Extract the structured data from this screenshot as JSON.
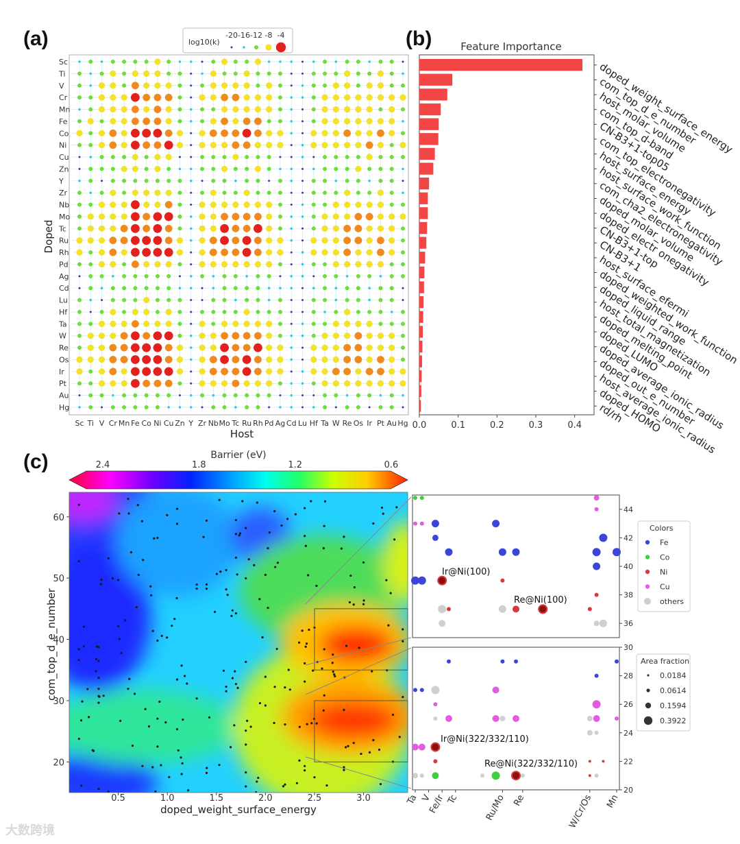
{
  "chart_data": [
    {
      "panel": "(a)",
      "type": "scatter",
      "xlabel": "Host",
      "ylabel": "Doped",
      "hosts": [
        "Sc",
        "Ti",
        "V",
        "Cr",
        "Mn",
        "Fe",
        "Co",
        "Ni",
        "Cu",
        "Zn",
        "Y",
        "Zr",
        "Nb",
        "Mo",
        "Tc",
        "Ru",
        "Rh",
        "Pd",
        "Ag",
        "Cd",
        "Lu",
        "Hf",
        "Ta",
        "W",
        "Re",
        "Os",
        "Ir",
        "Pt",
        "Au",
        "Hg"
      ],
      "dopants": [
        "Sc",
        "Ti",
        "V",
        "Cr",
        "Mn",
        "Fe",
        "Co",
        "Ni",
        "Cu",
        "Zn",
        "Y",
        "Zr",
        "Nb",
        "Mo",
        "Tc",
        "Ru",
        "Rh",
        "Pd",
        "Ag",
        "Cd",
        "Lu",
        "Hf",
        "Ta",
        "W",
        "Re",
        "Os",
        "Ir",
        "Pt",
        "Au",
        "Hg"
      ],
      "legend_title": "log10(k)",
      "legend_levels": [
        -20,
        -16,
        -12,
        -8,
        -4
      ],
      "legend_labels": [
        "-20",
        "-16",
        "-12",
        "-8",
        "-4"
      ],
      "legend_colors": [
        "#5b2aa8",
        "#39c6e6",
        "#6fdc3c",
        "#f5e02a",
        "#e3211c"
      ],
      "legend_placement": "top-center",
      "host_profile": [
        0.25,
        0.3,
        0.45,
        0.6,
        0.55,
        1.0,
        0.75,
        0.8,
        0.75,
        0.3,
        0.05,
        0.35,
        0.5,
        0.7,
        0.65,
        0.7,
        0.65,
        0.45,
        0.3,
        0.1,
        0.05,
        0.3,
        0.45,
        0.5,
        0.6,
        0.6,
        0.55,
        0.5,
        0.4,
        0.25
      ],
      "dopant_profile": [
        0.3,
        0.35,
        0.5,
        0.75,
        0.6,
        0.7,
        0.9,
        0.8,
        0.35,
        0.35,
        0.25,
        0.4,
        0.6,
        0.85,
        0.9,
        0.95,
        0.9,
        0.55,
        0.25,
        0.25,
        0.25,
        0.35,
        0.55,
        0.85,
        0.9,
        0.95,
        0.95,
        0.75,
        0.25,
        0.2
      ]
    },
    {
      "panel": "(b)",
      "type": "bar",
      "title": "Feature Importance",
      "orientation": "horizontal",
      "color": "#f24646",
      "xlim": [
        0,
        0.45
      ],
      "xticks": [
        0.0,
        0.1,
        0.2,
        0.3,
        0.4
      ],
      "xtick_labels": [
        "0.0",
        "0.1",
        "0.2",
        "0.3",
        "0.4"
      ],
      "categories": [
        "doped_weight_surface_energy",
        "com_top_d_e_number",
        "host_molar_volume",
        "com_top_d-band",
        "CN-B3+1-top05",
        "com_top_electronegativity",
        "host_surface_energy",
        "host_surface_work_function",
        "com_cha2_electronegativity",
        "doped_molar_volume",
        "doped_electr onegativity",
        "CN-B3+1-top",
        "CN-B3+1",
        "host_surface_efermi",
        "doped_weighted_work_function",
        "doped_liquid_range",
        "host_total_magnetization",
        "doped_melting_point",
        "doped_LUMO",
        "doped_average_ionic_radius",
        "doped_out_e_number",
        "host_average_ionic_radius",
        "doped_HOMO",
        "rd/rh"
      ],
      "values": [
        0.42,
        0.085,
        0.072,
        0.055,
        0.05,
        0.049,
        0.04,
        0.036,
        0.025,
        0.022,
        0.022,
        0.02,
        0.018,
        0.015,
        0.013,
        0.012,
        0.011,
        0.01,
        0.009,
        0.008,
        0.007,
        0.006,
        0.005,
        0.004
      ]
    },
    {
      "panel": "(c)",
      "type": "heatmap",
      "xlabel": "doped_weight_surface_energy",
      "ylabel": "com_top_d_e_number",
      "xlim": [
        0.0,
        3.45
      ],
      "ylim": [
        15,
        64
      ],
      "xticks": [
        0.5,
        1.0,
        1.5,
        2.0,
        2.5,
        3.0
      ],
      "xtick_labels": [
        "0.5",
        "1.0",
        "1.5",
        "2.0",
        "2.5",
        "3.0"
      ],
      "yticks": [
        20,
        30,
        40,
        50,
        60
      ],
      "ytick_labels": [
        "20",
        "30",
        "40",
        "50",
        "60"
      ],
      "colorbar": {
        "label": "Barrier (eV)",
        "range": [
          2.4,
          0.6
        ],
        "tick_values": [
          2.4,
          1.8,
          1.2,
          0.6
        ],
        "tick_labels": [
          "2.4",
          "1.8",
          "1.2",
          "0.6"
        ],
        "placement": "top"
      },
      "highlight_boxes": [
        {
          "x": [
            2.5,
            3.45
          ],
          "y": [
            35,
            45
          ]
        },
        {
          "x": [
            2.5,
            3.45
          ],
          "y": [
            20,
            30
          ]
        }
      ]
    },
    {
      "panel": "(c) zoom upper",
      "type": "scatter",
      "ylim": [
        35,
        45
      ],
      "yticks": [
        36,
        38,
        40,
        42,
        44
      ],
      "ytick_labels": [
        "36",
        "38",
        "40",
        "42",
        "44"
      ],
      "annotations": [
        {
          "text": "Ir@Ni(100)",
          "x": 4,
          "y": 39
        },
        {
          "text": "Re@Ni(100)",
          "x": 19,
          "y": 37
        }
      ]
    },
    {
      "panel": "(c) zoom lower",
      "type": "scatter",
      "ylim": [
        20,
        30
      ],
      "yticks": [
        20,
        22,
        24,
        26,
        28,
        30
      ],
      "ytick_labels": [
        "20",
        "22",
        "24",
        "26",
        "28",
        "30"
      ],
      "xtick_labels": [
        "Ta",
        "V",
        "Fe/Ir",
        "Tc",
        "Ru/Mo",
        "Re",
        "W/Cr/Os",
        "Mn"
      ],
      "annotations": [
        {
          "text": "Ir@Ni(322/332/110)",
          "x": 4,
          "y": 23
        },
        {
          "text": "Re@Ni(322/332/110)",
          "x": 19,
          "y": 21
        }
      ],
      "legend_colors": {
        "title": "Colors",
        "labels": [
          "Fe",
          "Co",
          "Ni",
          "Cu",
          "others"
        ],
        "colors": [
          "#3b46d6",
          "#3fcf3f",
          "#d63a3a",
          "#e35be3",
          "#cfcfcf"
        ]
      },
      "legend_area": {
        "title": "Area fraction",
        "labels": [
          "0.0184",
          "0.0614",
          "0.1594",
          "0.3922"
        ]
      }
    }
  ],
  "panel_labels": [
    "(a)",
    "(b)",
    "(c)"
  ],
  "watermark": "大数跨境"
}
